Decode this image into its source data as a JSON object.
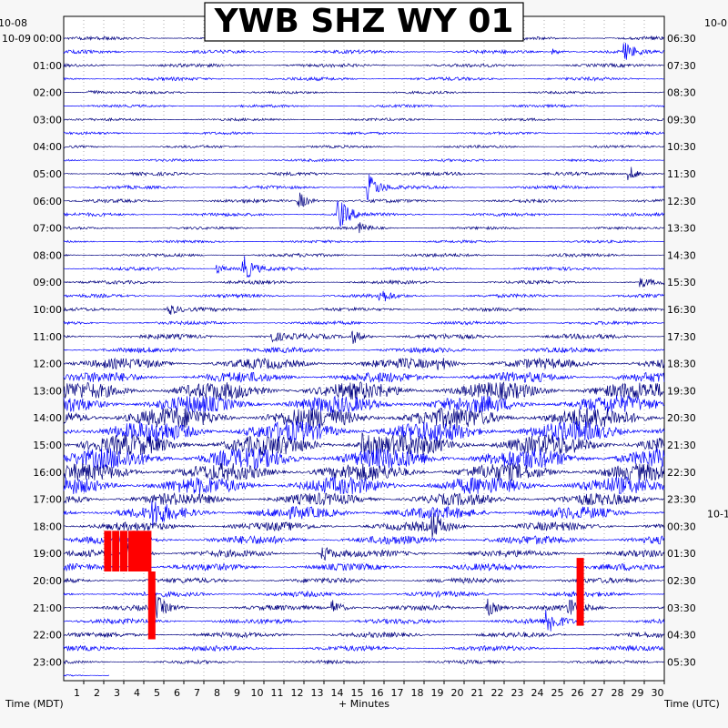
{
  "chart_data": {
    "type": "helicorder",
    "title": "YWB SHZ WY 01",
    "xlabel": "+ Minutes",
    "left_axis_title": "Time (MDT)",
    "right_axis_title": "Time (UTC)",
    "x_ticks": [
      "1",
      "2",
      "3",
      "4",
      "5",
      "6",
      "7",
      "8",
      "9",
      "10",
      "11",
      "12",
      "13",
      "14",
      "15",
      "16",
      "17",
      "18",
      "19",
      "20",
      "21",
      "22",
      "23",
      "24",
      "25",
      "26",
      "27",
      "28",
      "29",
      "30"
    ],
    "xlim": [
      0,
      30
    ],
    "left_dates": [
      {
        "text": "10-08",
        "row": -1
      },
      {
        "text": "10-09",
        "row": 0
      }
    ],
    "right_dates": [
      {
        "text": "10-0",
        "row": -1
      },
      {
        "text": "10-1",
        "row": 36
      }
    ],
    "left_times": [
      "00:00",
      "01:00",
      "02:00",
      "03:00",
      "04:00",
      "05:00",
      "06:00",
      "07:00",
      "08:00",
      "09:00",
      "10:00",
      "11:00",
      "12:00",
      "13:00",
      "14:00",
      "15:00",
      "16:00",
      "17:00",
      "18:00",
      "19:00",
      "20:00",
      "21:00",
      "22:00",
      "23:00"
    ],
    "right_times": [
      "06:30",
      "07:30",
      "08:30",
      "09:30",
      "10:30",
      "11:30",
      "12:30",
      "13:30",
      "14:30",
      "15:30",
      "16:30",
      "17:30",
      "18:30",
      "19:30",
      "20:30",
      "21:30",
      "22:30",
      "23:30",
      "00:30",
      "01:30",
      "02:30",
      "03:30",
      "04:30",
      "05:30"
    ],
    "trace_rows": 48,
    "row_minutes": 30,
    "row_colors": [
      "#000080",
      "#0000ff"
    ],
    "clip_color": "#ff0000",
    "background": "#ffffff",
    "grid": true,
    "noise_level_by_hour": [
      2,
      2,
      1.5,
      1.5,
      1.5,
      2,
      2,
      1.5,
      2,
      2,
      2,
      3,
      6,
      10,
      12,
      12,
      10,
      7,
      5,
      4,
      3,
      3,
      3,
      2
    ],
    "events": [
      {
        "row": 1,
        "minute": 28.1,
        "amp": 8
      },
      {
        "row": 1,
        "minute": 24.5,
        "amp": 3
      },
      {
        "row": 4,
        "minute": 1.3,
        "amp": 4
      },
      {
        "row": 10,
        "minute": 28.3,
        "amp": 8
      },
      {
        "row": 11,
        "minute": 15.3,
        "amp": 14
      },
      {
        "row": 12,
        "minute": 11.8,
        "amp": 9
      },
      {
        "row": 13,
        "minute": 13.8,
        "amp": 16
      },
      {
        "row": 14,
        "minute": 14.8,
        "amp": 5
      },
      {
        "row": 17,
        "minute": 9.0,
        "amp": 14
      },
      {
        "row": 17,
        "minute": 7.7,
        "amp": 5
      },
      {
        "row": 18,
        "minute": 28.9,
        "amp": 5
      },
      {
        "row": 19,
        "minute": 15.8,
        "amp": 8
      },
      {
        "row": 20,
        "minute": 5.3,
        "amp": 6
      },
      {
        "row": 22,
        "minute": 10.5,
        "amp": 5
      },
      {
        "row": 22,
        "minute": 14.5,
        "amp": 7
      },
      {
        "row": 24,
        "minute": 18.8,
        "amp": 6
      },
      {
        "row": 30,
        "minute": 15.0,
        "amp": 10
      },
      {
        "row": 35,
        "minute": 4.5,
        "amp": 12
      },
      {
        "row": 36,
        "minute": 18.5,
        "amp": 12
      },
      {
        "row": 38,
        "minute": 13.0,
        "amp": 8
      },
      {
        "row": 38,
        "minute": 3.3,
        "amp": 18
      },
      {
        "row": 42,
        "minute": 4.5,
        "amp": 16
      },
      {
        "row": 42,
        "minute": 13.5,
        "amp": 8
      },
      {
        "row": 42,
        "minute": 21.2,
        "amp": 10
      },
      {
        "row": 42,
        "minute": 25.3,
        "amp": 10
      },
      {
        "row": 43,
        "minute": 24.2,
        "amp": 14
      }
    ],
    "clipped": [
      {
        "row": 37,
        "minutes": [
          2.2,
          2.6,
          3.0,
          3.4,
          3.6,
          3.9,
          4.2
        ],
        "extent_rows": 3
      },
      {
        "row": 39,
        "minutes": [
          25.8
        ],
        "extent_rows": 5
      },
      {
        "row": 40,
        "minutes": [
          4.4
        ],
        "extent_rows": 5
      }
    ],
    "last_row_end_minute": 2.3
  }
}
